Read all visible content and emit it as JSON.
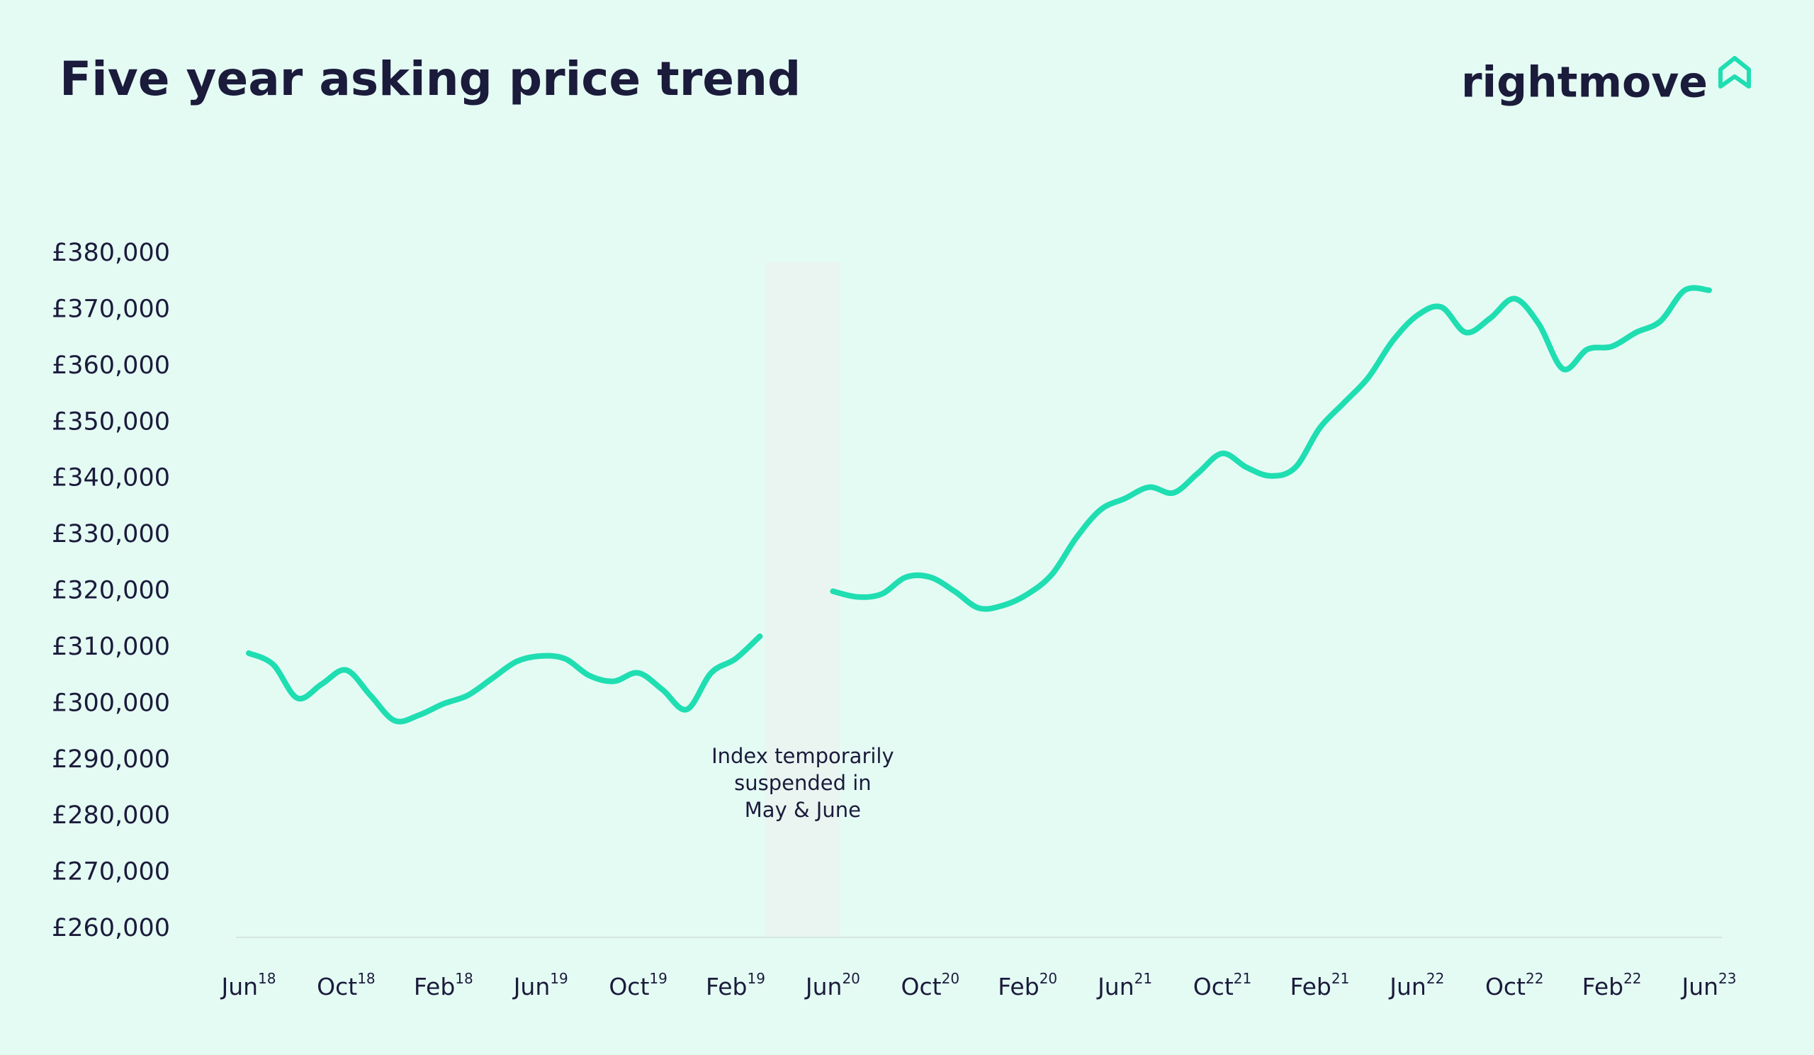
{
  "chart_data": {
    "type": "line",
    "title": "Five year asking price trend",
    "brand": "rightmove",
    "annotation": [
      "Index temporarily",
      "suspended in",
      "May & June"
    ],
    "categories": [
      {
        "month": "Jun",
        "year": "18"
      },
      null,
      null,
      null,
      {
        "month": "Oct",
        "year": "18"
      },
      null,
      null,
      null,
      {
        "month": "Feb",
        "year": "18"
      },
      null,
      null,
      null,
      {
        "month": "Jun",
        "year": "19"
      },
      null,
      null,
      null,
      {
        "month": "Oct",
        "year": "19"
      },
      null,
      null,
      null,
      {
        "month": "Feb",
        "year": "19"
      },
      null,
      null,
      null,
      {
        "month": "Jun",
        "year": "20"
      },
      null,
      null,
      null,
      {
        "month": "Oct",
        "year": "20"
      },
      null,
      null,
      null,
      {
        "month": "Feb",
        "year": "20"
      },
      null,
      null,
      null,
      {
        "month": "Jun",
        "year": "21"
      },
      null,
      null,
      null,
      {
        "month": "Oct",
        "year": "21"
      },
      null,
      null,
      null,
      {
        "month": "Feb",
        "year": "21"
      },
      null,
      null,
      null,
      {
        "month": "Jun",
        "year": "22"
      },
      null,
      null,
      null,
      {
        "month": "Oct",
        "year": "22"
      },
      null,
      null,
      null,
      {
        "month": "Feb",
        "year": "22"
      },
      null,
      null,
      null,
      {
        "month": "Jun",
        "year": "23"
      }
    ],
    "series": [
      {
        "color": "#1fdeb1",
        "values": [
          309000,
          307000,
          301000,
          303500,
          306000,
          301500,
          297000,
          298000,
          300000,
          301500,
          304500,
          307500,
          308500,
          308000,
          305000,
          304000,
          305500,
          302500,
          299000,
          305500,
          308000,
          312000,
          null,
          null,
          320000,
          319000,
          319500,
          322500,
          322500,
          320000,
          317000,
          317500,
          319500,
          323000,
          329500,
          334500,
          336500,
          338500,
          337500,
          341000,
          344500,
          342000,
          340500,
          342000,
          349000,
          353500,
          358000,
          364500,
          369000,
          370500,
          366000,
          368500,
          372000,
          367500,
          359500,
          363000,
          363500,
          366000,
          368000,
          373500,
          373500
        ]
      }
    ],
    "ylim": [
      260000,
      380000
    ],
    "yticks": [
      {
        "value": 260000,
        "label": "£260,000"
      },
      {
        "value": 270000,
        "label": "£270,000"
      },
      {
        "value": 280000,
        "label": "£280,000"
      },
      {
        "value": 290000,
        "label": "£290,000"
      },
      {
        "value": 300000,
        "label": "£300,000"
      },
      {
        "value": 310000,
        "label": "£310,000"
      },
      {
        "value": 320000,
        "label": "£320,000"
      },
      {
        "value": 330000,
        "label": "£330,000"
      },
      {
        "value": 340000,
        "label": "£340,000"
      },
      {
        "value": 350000,
        "label": "£350,000"
      },
      {
        "value": 360000,
        "label": "£360,000"
      },
      {
        "value": 370000,
        "label": "£370,000"
      },
      {
        "value": 380000,
        "label": "£380,000"
      }
    ]
  }
}
